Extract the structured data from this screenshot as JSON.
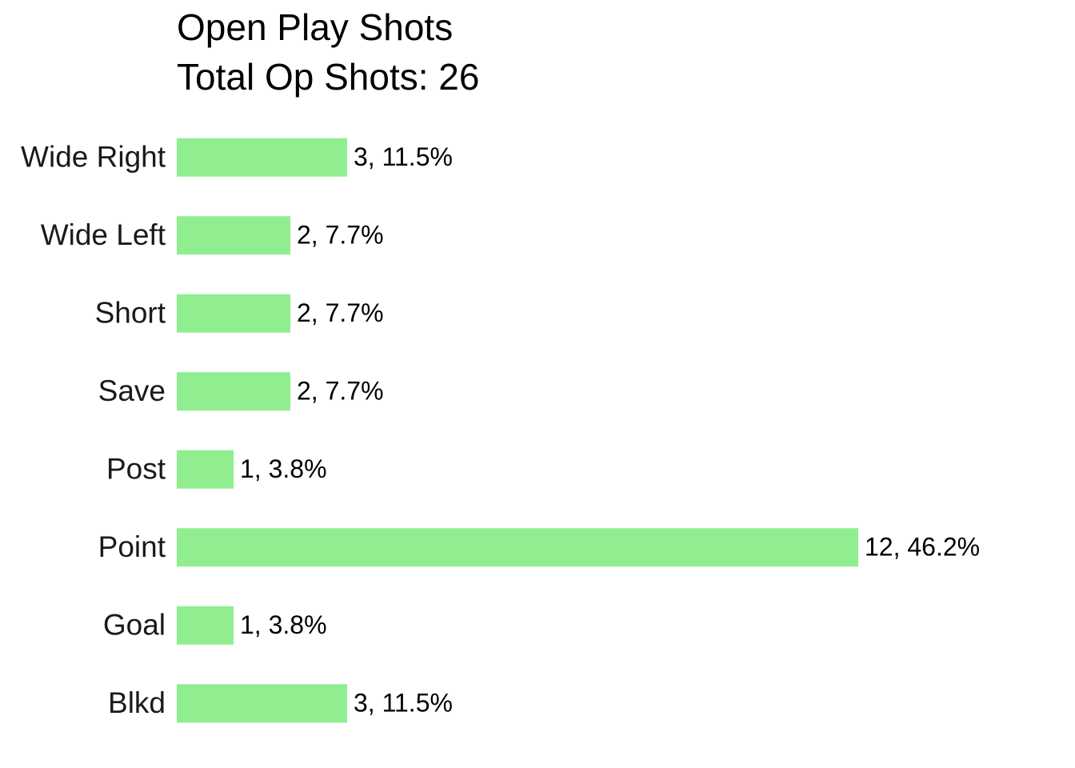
{
  "chart_data": {
    "type": "bar",
    "orientation": "horizontal",
    "title": "Open Play Shots",
    "subtitle": "Total Op Shots: 26",
    "categories": [
      "Wide Right",
      "Wide Left",
      "Short",
      "Save",
      "Post",
      "Point",
      "Goal",
      "Blkd"
    ],
    "values": [
      3,
      2,
      2,
      2,
      1,
      12,
      1,
      3
    ],
    "value_labels": [
      "3, 11.5%",
      "2, 7.7%",
      "2, 7.7%",
      "2, 7.7%",
      "1, 3.8%",
      "12, 46.2%",
      "1, 3.8%",
      "3, 11.5%"
    ],
    "color": "#90ee90"
  }
}
